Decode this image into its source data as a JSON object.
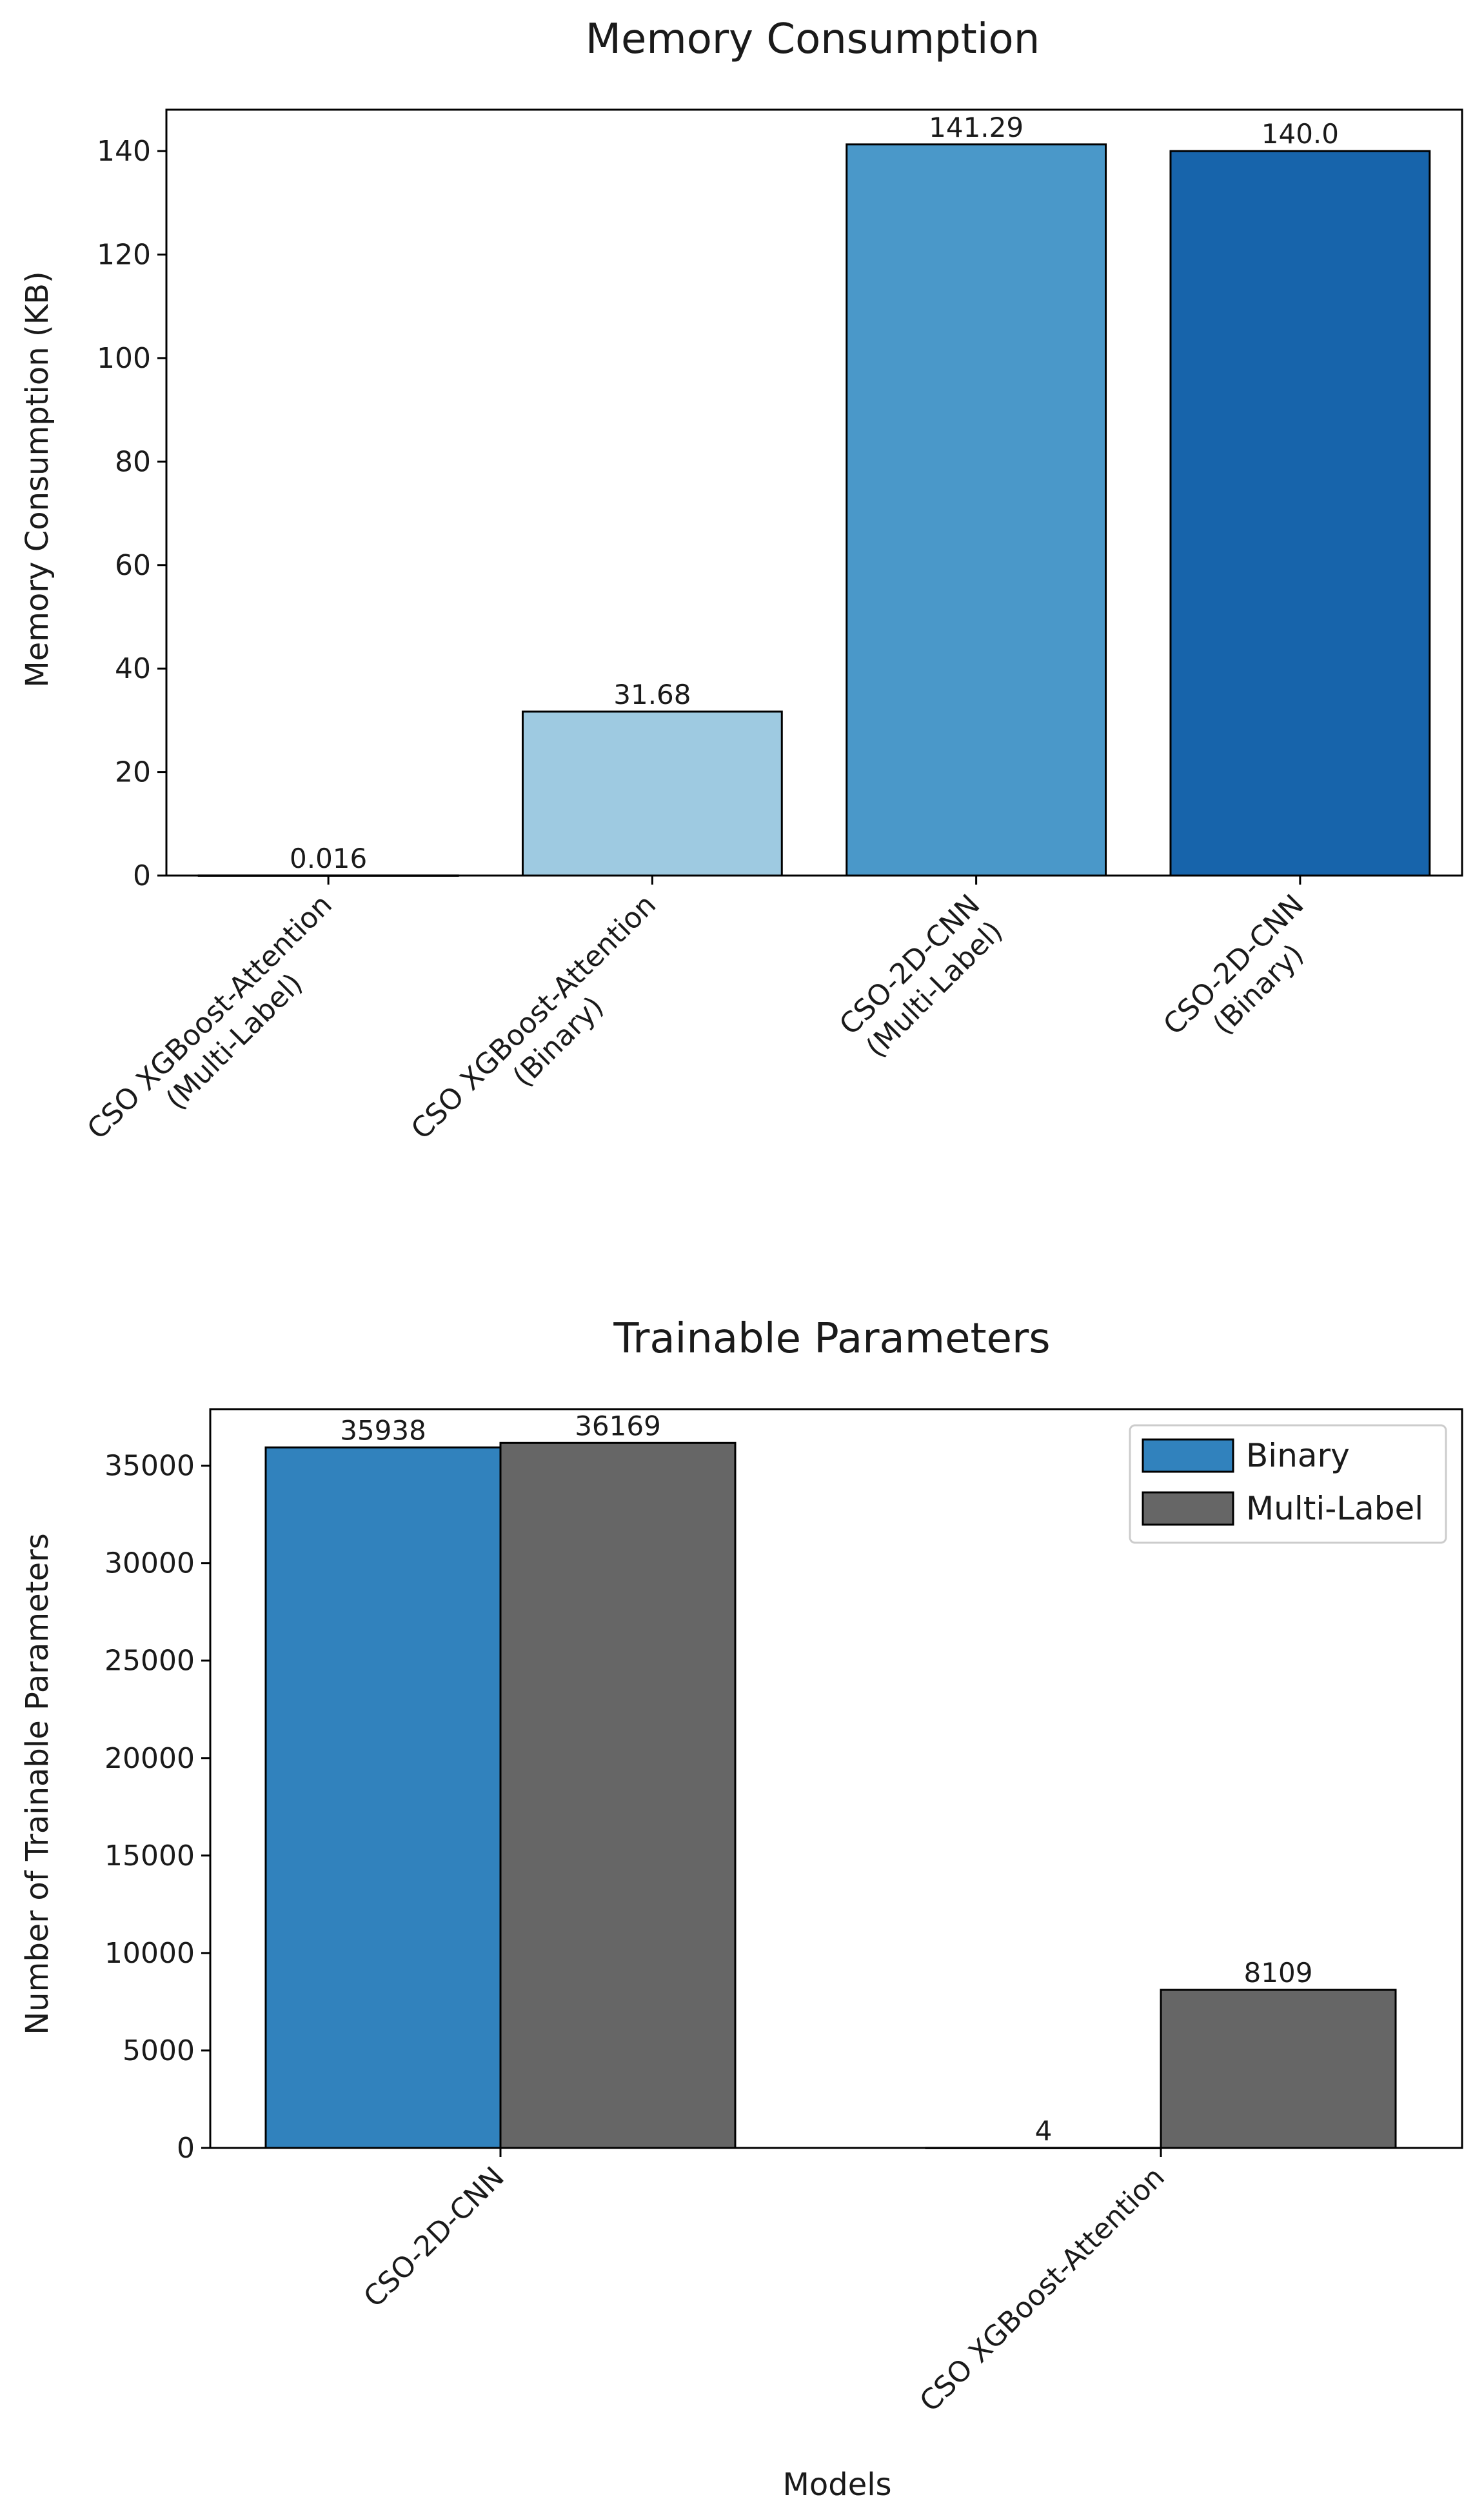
{
  "chart_data": [
    {
      "type": "bar",
      "title": "Memory Consumption",
      "xlabel": "",
      "ylabel": "Memory Consumption (KB)",
      "ylim": [
        0,
        148
      ],
      "yticks": [
        "0",
        "20",
        "40",
        "60",
        "80",
        "100",
        "120",
        "140"
      ],
      "categories": [
        [
          "CSO XGBoost-Attention",
          "(Multi-Label)"
        ],
        [
          "CSO XGBoost-Attention",
          "(Binary)"
        ],
        [
          "CSO-2D-CNN",
          "(Multi-Label)"
        ],
        [
          "CSO-2D-CNN",
          "(Binary)"
        ]
      ],
      "values": [
        0.016,
        31.68,
        141.29,
        140.0
      ],
      "value_labels": [
        "0.016",
        "31.68",
        "141.29",
        "140.0"
      ],
      "colors": [
        "#c6dbef",
        "#9ecae1",
        "#4a98c9",
        "#1764ab"
      ]
    },
    {
      "type": "bar",
      "title": "Trainable Parameters",
      "xlabel": "Models",
      "ylabel": "Number of Trainable Parameters",
      "ylim": [
        0,
        37900
      ],
      "yticks": [
        "0",
        "5000",
        "10000",
        "15000",
        "20000",
        "25000",
        "30000",
        "35000"
      ],
      "categories": [
        "CSO-2D-CNN",
        "CSO XGBoost-Attention"
      ],
      "series": [
        {
          "name": "Binary",
          "values": [
            35938,
            4
          ],
          "value_labels": [
            "35938",
            "4"
          ],
          "color": "#3182bd"
        },
        {
          "name": "Multi-Label",
          "values": [
            36169,
            8109
          ],
          "value_labels": [
            "36169",
            "8109"
          ],
          "color": "#666666"
        }
      ],
      "legend_position": "top-right"
    }
  ]
}
